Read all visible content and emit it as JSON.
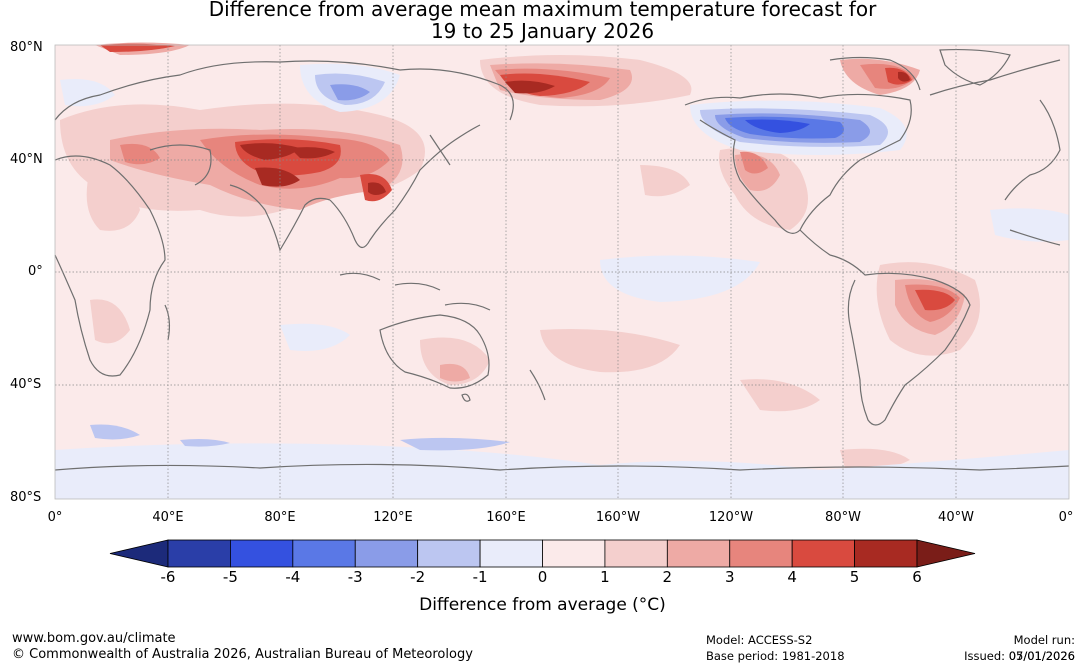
{
  "header": {
    "title_line1": "Difference from average mean maximum temperature forecast for",
    "title_line2": "19 to 25 January 2026"
  },
  "axes": {
    "lat_labels": [
      "80°N",
      "40°N",
      "0°",
      "40°S",
      "80°S"
    ],
    "lon_labels": [
      "0°",
      "40°E",
      "80°E",
      "120°E",
      "160°E",
      "160°W",
      "120°W",
      "80°W",
      "40°W",
      "0°"
    ]
  },
  "colorbar": {
    "ticks": [
      "-6",
      "-5",
      "-4",
      "-3",
      "-2",
      "-1",
      "0",
      "1",
      "2",
      "3",
      "4",
      "5",
      "6"
    ],
    "colors": [
      "#2a3ea8",
      "#3451e0",
      "#5a78e6",
      "#8a9ce8",
      "#bcc6f1",
      "#e9ecfa",
      "#fbeaea",
      "#f4cfcd",
      "#eeaaa5",
      "#e7857d",
      "#d94a3f",
      "#a82a22"
    ],
    "extend_low_color": "#1c2a7a",
    "extend_high_color": "#7a1d18",
    "label": "Difference from average (°C)"
  },
  "map_colors": {
    "background": "#fbeaea",
    "coast": "#6f6f6f",
    "grid": "#888888"
  },
  "footer": {
    "website": "www.bom.gov.au/climate",
    "copyright": "© Commonwealth of Australia 2026, Australian Bureau of Meteorology",
    "model": "Model: ACCESS-S2",
    "base_period": "Base period: 1981-2018",
    "model_run": "Model run: 05/01/2026",
    "issued": "Issued: 07/01/2026"
  }
}
